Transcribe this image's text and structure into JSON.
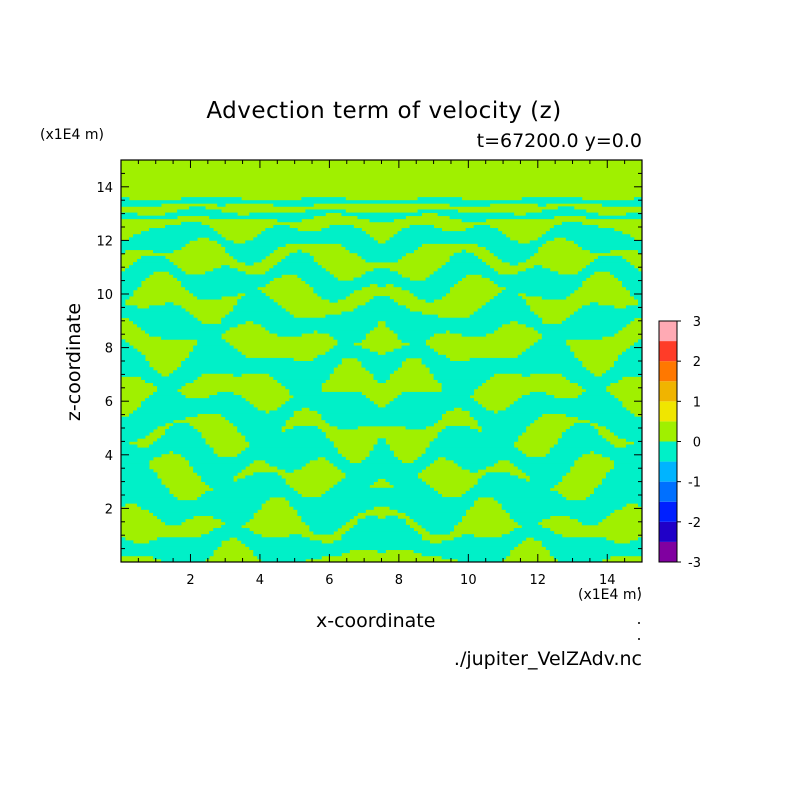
{
  "chart_data": {
    "type": "heatmap",
    "title": "Advection term of velocity (z)",
    "subtitle": "t=67200.0 y=0.0",
    "xlabel": "x-coordinate",
    "ylabel": "z-coordinate",
    "x_scale_note": "(x1E4 m)",
    "y_scale_note": "(x1E4 m)",
    "source": "./jupiter_VelZAdv.nc",
    "xlim": [
      0,
      15
    ],
    "ylim": [
      0,
      15
    ],
    "xticks": [
      2,
      4,
      6,
      8,
      10,
      12,
      14
    ],
    "yticks": [
      2,
      4,
      6,
      8,
      10,
      12,
      14
    ],
    "colorbar": {
      "ticks": [
        3,
        2,
        1,
        0,
        -1,
        -2,
        -3
      ],
      "levels": [
        {
          "from": -3.0,
          "to": -2.5,
          "color": "#8000a0"
        },
        {
          "from": -2.5,
          "to": -2.0,
          "color": "#2000c8"
        },
        {
          "from": -2.0,
          "to": -1.5,
          "color": "#0020ff"
        },
        {
          "from": -1.5,
          "to": -1.0,
          "color": "#0070ff"
        },
        {
          "from": -1.0,
          "to": -0.5,
          "color": "#00b4ff"
        },
        {
          "from": -0.5,
          "to": 0.0,
          "color": "#00f0c8"
        },
        {
          "from": 0.0,
          "to": 0.5,
          "color": "#a0f000"
        },
        {
          "from": 0.5,
          "to": 1.0,
          "color": "#f0e600"
        },
        {
          "from": 1.0,
          "to": 1.5,
          "color": "#f0b400"
        },
        {
          "from": 1.5,
          "to": 2.0,
          "color": "#ff7800"
        },
        {
          "from": 2.0,
          "to": 2.5,
          "color": "#ff3c28"
        },
        {
          "from": 2.5,
          "to": 3.0,
          "color": "#ffaab4"
        }
      ]
    },
    "bands": [
      {
        "z": 0.6,
        "half_width": 0.45,
        "amp": 0.35
      },
      {
        "z": 2.3,
        "half_width": 0.6,
        "amp": 0.4
      },
      {
        "z": 4.0,
        "half_width": 0.55,
        "amp": 0.45
      },
      {
        "z": 5.6,
        "half_width": 0.5,
        "amp": 0.4
      },
      {
        "z": 7.3,
        "half_width": 0.5,
        "amp": 0.4
      },
      {
        "z": 9.0,
        "half_width": 0.45,
        "amp": 0.35
      },
      {
        "z": 10.6,
        "half_width": 0.4,
        "amp": 0.35
      },
      {
        "z": 12.0,
        "half_width": 0.35,
        "amp": 0.3
      },
      {
        "z": 12.95,
        "half_width": 0.12,
        "amp": 0.08
      },
      {
        "z": 13.45,
        "half_width": 0.1,
        "amp": 0.05
      }
    ],
    "uniform_above_z": 13.6
  }
}
